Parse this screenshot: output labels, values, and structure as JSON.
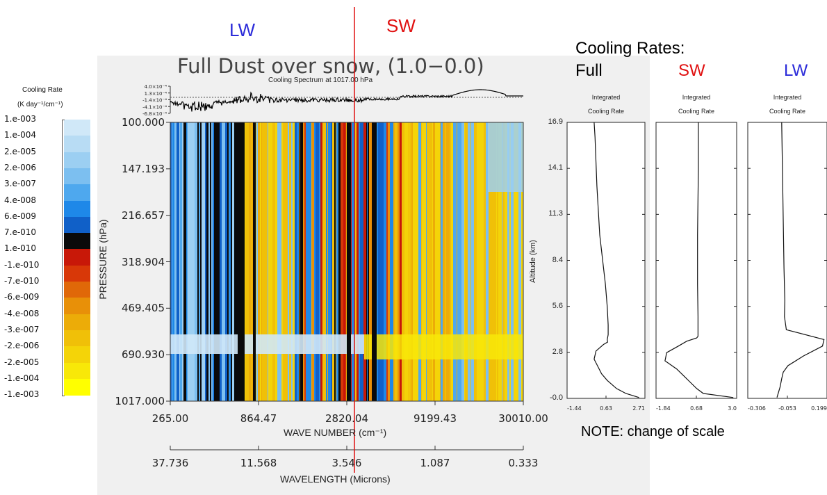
{
  "banner": {
    "lw": "LW",
    "sw": "SW",
    "lw_color": "#2b2bd9",
    "sw_color": "#e01010"
  },
  "colorbar": {
    "title_line1": "Cooling Rate",
    "title_line2": "(K day⁻¹/cm⁻¹)",
    "labels": [
      "1.e-003",
      "1.e-004",
      "2.e-005",
      "2.e-006",
      "3.e-007",
      "4.e-008",
      "6.e-009",
      "7.e-010",
      "1.e-010",
      "-1.e-010",
      "-7.e-010",
      "-6.e-009",
      "-4.e-008",
      "-3.e-007",
      "-2.e-006",
      "-2.e-005",
      "-1.e-004",
      "-1.e-003"
    ],
    "colors": [
      "#e8f4fc",
      "#d0e8f8",
      "#b8dcf4",
      "#9ccff2",
      "#7cbff0",
      "#4ea8ee",
      "#1e88e8",
      "#1060c8",
      "#0a0a0a",
      "#c81808",
      "#d83808",
      "#e06808",
      "#e89008",
      "#ecac08",
      "#f0c008",
      "#f4d408",
      "#f8e808",
      "#ffff00"
    ]
  },
  "chart_data": [
    {
      "type": "heatmap",
      "title": "Full Dust over snow, (1.0−0.0)",
      "xlabel": "WAVE NUMBER (cm⁻¹)",
      "xlabel2": "WAVELENGTH (Microns)",
      "ylabel": "PRESSURE (hPa)",
      "x_ticks": [
        "265.00",
        "864.47",
        "2820.04",
        "9199.43",
        "30010.00"
      ],
      "x2_ticks": [
        "37.736",
        "11.568",
        "3.546",
        "1.087",
        "0.333"
      ],
      "y_ticks": [
        "100.000",
        "147.193",
        "216.657",
        "318.904",
        "469.405",
        "690.930",
        "1017.000"
      ],
      "x_scale": "log",
      "xlim": [
        265,
        30010
      ],
      "ylim": [
        100,
        1017
      ],
      "divider_wavenumber": 2820
    },
    {
      "type": "line",
      "title": "Cooling Spectrum at 1017.00 hPa",
      "y_ticks": [
        "4.0×10⁻⁴",
        "1.3×10⁻⁴",
        "-1.4×10⁻⁴",
        "-4.1×10⁻⁴",
        "-6.8×10⁻⁴"
      ]
    },
    {
      "type": "line",
      "section_title_line1": "Cooling Rates:",
      "section_title_line2": "Full",
      "panel_title_line1": "Integrated",
      "panel_title_line2": "Cooling Rate",
      "ylabel": "Altitude (km)",
      "y_ticks": [
        "16.9",
        "14.1",
        "11.3",
        "8.4",
        "5.6",
        "2.8",
        "-0.0"
      ],
      "x_ticks": [
        "-1.44",
        "0.63",
        "2.71"
      ],
      "xlim": [
        -1.44,
        2.71
      ],
      "ylim": [
        0,
        16.9
      ],
      "x": [
        0.0,
        0.05,
        0.15,
        0.3,
        0.6,
        0.7,
        0.75,
        0.75,
        0.7,
        0.72,
        0.5,
        0.3,
        0.1,
        0.0,
        0.4,
        0.7,
        1.2,
        1.7,
        2.4
      ],
      "y": [
        16.9,
        16.0,
        13.0,
        10.0,
        7.0,
        5.6,
        4.5,
        3.9,
        3.6,
        3.45,
        3.3,
        3.1,
        2.9,
        2.4,
        1.5,
        1.1,
        0.6,
        0.3,
        0.05
      ]
    },
    {
      "type": "line",
      "section_title": "SW",
      "panel_title_line1": "Integrated",
      "panel_title_line2": "Cooling Rate",
      "x_ticks": [
        "-1.84",
        "0.68",
        "3.0"
      ],
      "xlim": [
        -1.84,
        3.0
      ],
      "ylim": [
        0,
        16.9
      ],
      "x": [
        0.7,
        0.7,
        0.65,
        0.65,
        0.68,
        0.68,
        0.6,
        0.0,
        -0.5,
        -1.2,
        -1.3,
        -0.6,
        -0.2,
        0.2,
        0.6,
        1.0,
        2.8
      ],
      "y": [
        16.9,
        14.0,
        10.0,
        7.0,
        5.0,
        3.8,
        3.7,
        3.5,
        3.2,
        2.8,
        2.3,
        1.8,
        1.4,
        1.0,
        0.6,
        0.3,
        0.05
      ]
    },
    {
      "type": "line",
      "section_title": "LW",
      "panel_title_line1": "Integrated",
      "panel_title_line2": "Cooling Rate",
      "x_ticks": [
        "-0.306",
        "-0.053",
        "0.199"
      ],
      "xlim": [
        -0.306,
        0.199
      ],
      "ylim": [
        0,
        16.9
      ],
      "x": [
        -0.09,
        -0.085,
        -0.08,
        -0.075,
        -0.07,
        -0.072,
        -0.06,
        0.18,
        0.17,
        0.05,
        -0.05,
        -0.08,
        -0.09,
        -0.1,
        -0.12
      ],
      "y": [
        16.9,
        14.0,
        11.0,
        8.0,
        6.0,
        5.0,
        4.2,
        3.6,
        3.2,
        2.6,
        2.0,
        1.6,
        1.2,
        0.7,
        0.05
      ]
    }
  ],
  "note": "NOTE:  change of scale"
}
